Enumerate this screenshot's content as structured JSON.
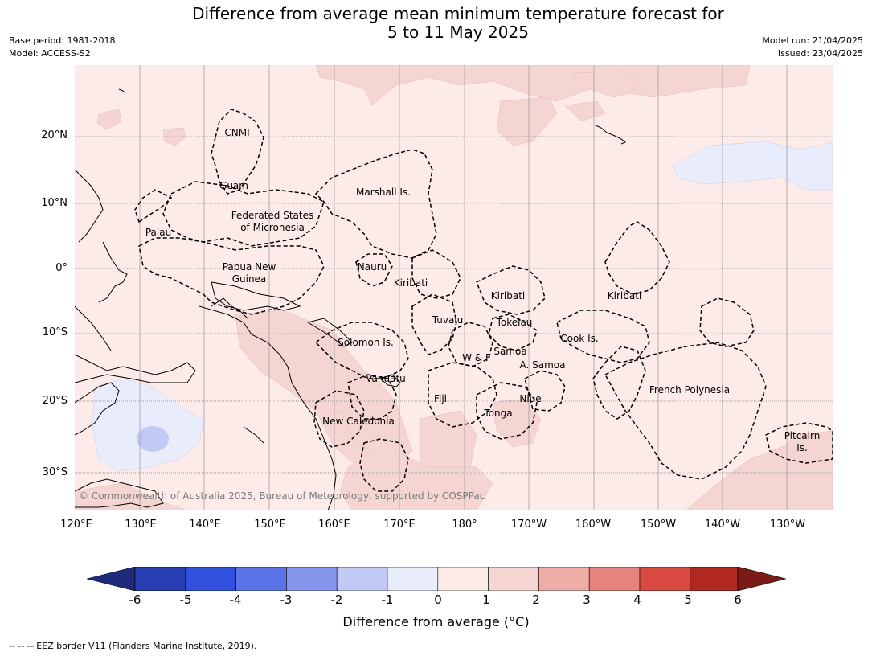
{
  "title": {
    "line1": "Difference from average mean minimum temperature forecast for",
    "line2": "5 to 11 May 2025"
  },
  "meta_left": {
    "base_period": "Base period: 1981-2018",
    "model": "Model: ACCESS-S2"
  },
  "meta_right": {
    "model_run": "Model run: 21/04/2025",
    "issued": "Issued: 23/04/2025"
  },
  "map": {
    "projection": "equirectangular",
    "lon_range": [
      120,
      232
    ],
    "lat_range": [
      -36,
      30
    ],
    "ocean_color": "#fcebe9",
    "gridlines": true,
    "lat_labels": [
      "20°N",
      "10°N",
      "0°",
      "10°S",
      "20°S",
      "30°S"
    ],
    "lon_labels": [
      "120°E",
      "130°E",
      "140°E",
      "150°E",
      "160°E",
      "170°E",
      "180°",
      "170°W",
      "160°W",
      "150°W",
      "140°W",
      "130°W"
    ],
    "regions": [
      "CNMI",
      "Guam",
      "Marshall Is.",
      "Federated States",
      "of Micronesia",
      "Palau",
      "Papua New",
      "Guinea",
      "Nauru",
      "Kiribati",
      "Kiribati",
      "Kiribati",
      "Tuvalu",
      "Tokelau",
      "Cook Is.",
      "Solomon Is.",
      "W & F",
      "Samoa",
      "A. Samoa",
      "Vanuatu",
      "Fiji",
      "Niue",
      "Tonga",
      "French Polynesia",
      "New Caledonia",
      "Pitcairn",
      "Is."
    ],
    "copyright": "© Commonwealth of Australia 2025, Bureau of Meteorology, supported by COSPPac"
  },
  "colorbar": {
    "colors": [
      "#1f2a7a",
      "#283fb3",
      "#3150de",
      "#5a73e6",
      "#8595ec",
      "#c2c9f4",
      "#e8ecfb",
      "#fcebe9",
      "#f5d5d2",
      "#eeaca7",
      "#e5847c",
      "#d84a41",
      "#b0281f",
      "#7c1a16"
    ],
    "ticks": [
      "-6",
      "-5",
      "-4",
      "-3",
      "-2",
      "-1",
      "0",
      "1",
      "2",
      "3",
      "4",
      "5",
      "6"
    ],
    "label": "Difference from average (°C)"
  },
  "footnote": "-- -- -- EEZ border V11 (Flanders Marine Institute, 2019)."
}
